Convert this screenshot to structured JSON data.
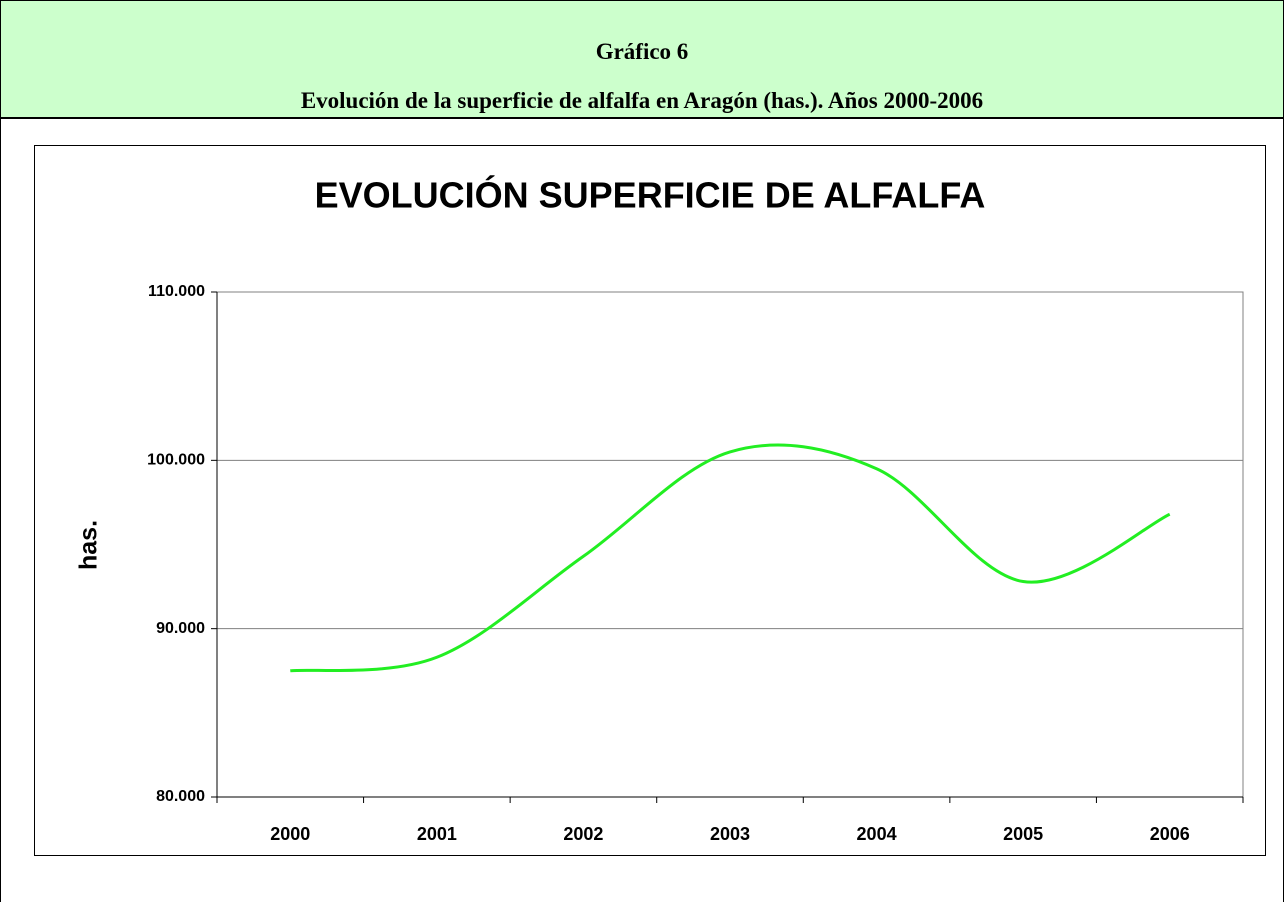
{
  "header": {
    "title": "Gráfico 6",
    "subtitle": "Evolución de la superficie de alfalfa en Aragón  (has.). Años 2000-2006"
  },
  "chart_data": {
    "type": "line",
    "title": "EVOLUCIÓN SUPERFICIE DE ALFALFA",
    "y_label": "has.",
    "categories": [
      "2000",
      "2001",
      "2002",
      "2003",
      "2004",
      "2005",
      "2006"
    ],
    "values": [
      87500,
      88300,
      94300,
      100500,
      99500,
      92800,
      96800
    ],
    "color": "#22ee22",
    "ylim": [
      80000,
      110000
    ],
    "yticks": [
      {
        "value": 80000,
        "label": "80.000"
      },
      {
        "value": 90000,
        "label": "90.000"
      },
      {
        "value": 100000,
        "label": "100.000"
      },
      {
        "value": 110000,
        "label": "110.000"
      }
    ],
    "grid": true
  }
}
